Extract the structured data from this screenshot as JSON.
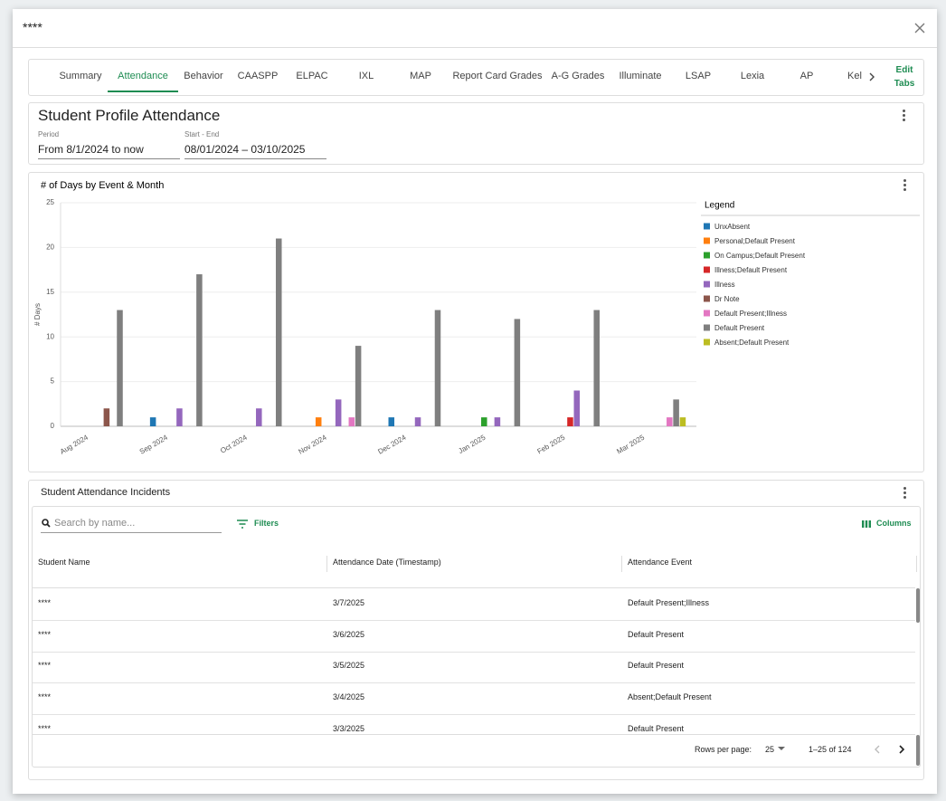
{
  "header": {
    "title": "****"
  },
  "tabs": {
    "items": [
      "Summary",
      "Attendance",
      "Behavior",
      "CAASPP",
      "ELPAC",
      "IXL",
      "MAP",
      "Report Card Grades",
      "A-G Grades",
      "Illuminate",
      "LSAP",
      "Lexia",
      "AP",
      "Kel"
    ],
    "edit": "Edit Tabs"
  },
  "profile": {
    "title": "Student Profile Attendance",
    "period_label": "Period",
    "period_value": "From 8/1/2024 to now",
    "range_label": "Start - End",
    "range_value": "08/01/2024 – 03/10/2025"
  },
  "chart_data": {
    "type": "bar",
    "title": "# of Days by Event & Month",
    "y_label": "# Days",
    "legend_title": "Legend",
    "legend": "right",
    "grid": true,
    "categories": [
      "Aug 2024",
      "Sep 2024",
      "Oct 2024",
      "Nov 2024",
      "Dec 2024",
      "Jan 2025",
      "Feb 2025",
      "Mar 2025"
    ],
    "ylim": [
      0,
      25
    ],
    "yticks": [
      0,
      5,
      10,
      15,
      20,
      25
    ],
    "series": [
      {
        "name": "UnxAbsent",
        "color": "#1f77b4",
        "values": [
          0,
          1,
          0,
          0,
          1,
          0,
          0,
          0
        ]
      },
      {
        "name": "Personal;Default Present",
        "color": "#ff7f0e",
        "values": [
          0,
          0,
          0,
          1,
          0,
          0,
          0,
          0
        ]
      },
      {
        "name": "On Campus;Default Present",
        "color": "#2ca02c",
        "values": [
          0,
          0,
          0,
          0,
          0,
          1,
          0,
          0
        ]
      },
      {
        "name": "Illness;Default Present",
        "color": "#d62728",
        "values": [
          0,
          0,
          0,
          0,
          0,
          0,
          1,
          0
        ]
      },
      {
        "name": "Illness",
        "color": "#9467bd",
        "values": [
          0,
          2,
          2,
          3,
          1,
          1,
          4,
          0
        ]
      },
      {
        "name": "Dr Note",
        "color": "#8c564b",
        "values": [
          2,
          0,
          0,
          0,
          0,
          0,
          0,
          0
        ]
      },
      {
        "name": "Default Present;Illness",
        "color": "#e377c2",
        "values": [
          0,
          0,
          0,
          1,
          0,
          0,
          0,
          1
        ]
      },
      {
        "name": "Default Present",
        "color": "#7f7f7f",
        "values": [
          13,
          17,
          21,
          9,
          13,
          12,
          13,
          3
        ]
      },
      {
        "name": "Absent;Default Present",
        "color": "#bcbd22",
        "values": [
          0,
          0,
          0,
          0,
          0,
          0,
          0,
          1
        ]
      }
    ]
  },
  "incidents": {
    "title": "Student Attendance Incidents",
    "search_placeholder": "Search by name...",
    "filters": "Filters",
    "columns": "Columns",
    "headers": [
      "Student Name",
      "Attendance Date (Timestamp)",
      "Attendance Event"
    ],
    "rows": [
      [
        "****",
        "3/7/2025",
        "Default Present;Illness"
      ],
      [
        "****",
        "3/6/2025",
        "Default Present"
      ],
      [
        "****",
        "3/5/2025",
        "Default Present"
      ],
      [
        "****",
        "3/4/2025",
        "Absent;Default Present"
      ],
      [
        "****",
        "3/3/2025",
        "Default Present"
      ]
    ],
    "rows_per_page_label": "Rows per page:",
    "rows_per_page": "25",
    "range": "1–25 of 124"
  }
}
